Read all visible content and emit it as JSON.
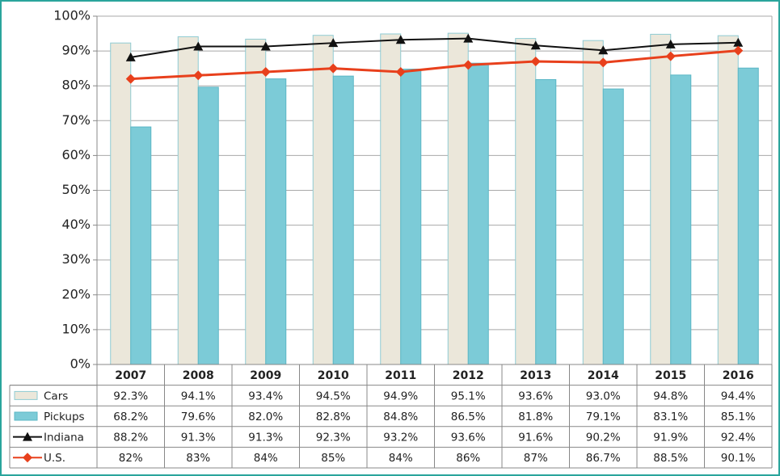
{
  "chart_data": {
    "type": "bar",
    "categories": [
      "2007",
      "2008",
      "2009",
      "2010",
      "2011",
      "2012",
      "2013",
      "2014",
      "2015",
      "2016"
    ],
    "series": [
      {
        "name": "Cars",
        "type": "bar",
        "color": "#ebe7da",
        "stroke": "#8fcbd3",
        "values": [
          92.3,
          94.1,
          93.4,
          94.5,
          94.9,
          95.1,
          93.6,
          93.0,
          94.8,
          94.4
        ],
        "value_labels": [
          "92.3%",
          "94.1%",
          "93.4%",
          "94.5%",
          "94.9%",
          "95.1%",
          "93.6%",
          "93.0%",
          "94.8%",
          "94.4%"
        ]
      },
      {
        "name": "Pickups",
        "type": "bar",
        "color": "#7ccbd7",
        "stroke": "#5bb7c6",
        "values": [
          68.2,
          79.6,
          82.0,
          82.8,
          84.8,
          86.5,
          81.8,
          79.1,
          83.1,
          85.1
        ],
        "value_labels": [
          "68.2%",
          "79.6%",
          "82.0%",
          "82.8%",
          "84.8%",
          "86.5%",
          "81.8%",
          "79.1%",
          "83.1%",
          "85.1%"
        ]
      },
      {
        "name": "Indiana",
        "type": "line",
        "marker": "triangle",
        "color": "#111111",
        "values": [
          88.2,
          91.3,
          91.3,
          92.3,
          93.2,
          93.6,
          91.6,
          90.2,
          91.9,
          92.4
        ],
        "value_labels": [
          "88.2%",
          "91.3%",
          "91.3%",
          "92.3%",
          "93.2%",
          "93.6%",
          "91.6%",
          "90.2%",
          "91.9%",
          "92.4%"
        ]
      },
      {
        "name": "U.S.",
        "type": "line",
        "marker": "diamond",
        "color": "#e8401c",
        "values": [
          82,
          83,
          84,
          85,
          84,
          86,
          87,
          86.7,
          88.5,
          90.1
        ],
        "value_labels": [
          "82%",
          "83%",
          "84%",
          "85%",
          "84%",
          "86%",
          "87%",
          "86.7%",
          "88.5%",
          "90.1%"
        ]
      }
    ],
    "ylim": [
      0,
      100
    ],
    "yticks": [
      {
        "value": 0,
        "label": "0%"
      },
      {
        "value": 10,
        "label": "10%"
      },
      {
        "value": 20,
        "label": "20%"
      },
      {
        "value": 30,
        "label": "30%"
      },
      {
        "value": 40,
        "label": "40%"
      },
      {
        "value": 50,
        "label": "50%"
      },
      {
        "value": 60,
        "label": "60%"
      },
      {
        "value": 70,
        "label": "70%"
      },
      {
        "value": 80,
        "label": "80%"
      },
      {
        "value": 90,
        "label": "90%"
      },
      {
        "value": 100,
        "label": "100%"
      }
    ],
    "grid": true
  }
}
